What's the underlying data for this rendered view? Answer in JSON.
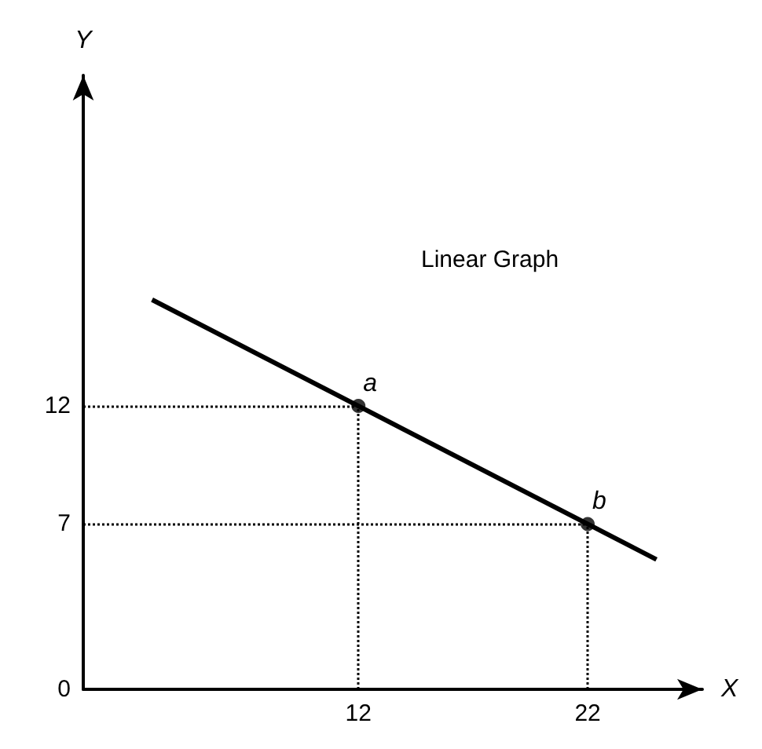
{
  "chart_data": {
    "type": "line",
    "title": "Linear Graph",
    "xlabel": "X",
    "ylabel": "Y",
    "series": [
      {
        "x": [
          3,
          25
        ],
        "values": [
          16.5,
          5.5
        ],
        "color": "#000000",
        "marker": "none"
      },
      {
        "type": "scatter",
        "x": [
          12,
          22
        ],
        "values": [
          12,
          7
        ],
        "color": "#000000",
        "marker": "circle"
      }
    ],
    "annotations": [
      {
        "text": "a",
        "x": 12,
        "y": 12
      },
      {
        "text": "b",
        "x": 22,
        "y": 7
      }
    ],
    "ref_lines": [
      {
        "axis": "x",
        "value": 12,
        "line_style": "dotted",
        "color": "#000000"
      },
      {
        "axis": "x",
        "value": 22,
        "line_style": "dotted",
        "color": "#000000"
      },
      {
        "axis": "y",
        "value": 12,
        "line_style": "dotted",
        "color": "#000000"
      },
      {
        "axis": "y",
        "value": 7,
        "line_style": "dotted",
        "color": "#000000"
      }
    ],
    "xlim": [
      0,
      27
    ],
    "ylim": [
      0,
      26
    ],
    "xticks": [
      12,
      22
    ],
    "yticks": [
      0,
      7,
      12
    ],
    "grid": false
  }
}
